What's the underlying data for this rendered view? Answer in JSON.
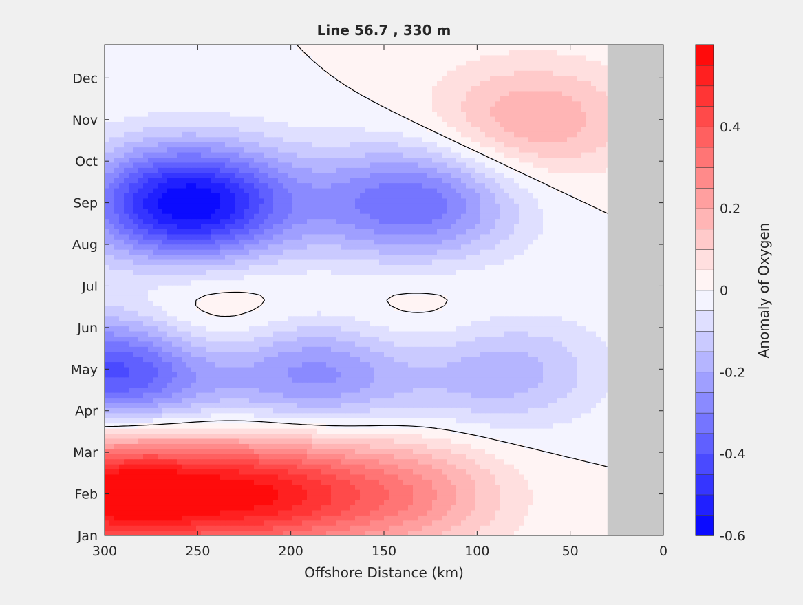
{
  "chart_data": {
    "type": "contour",
    "title": "Line 56.7 , 330 m",
    "xlabel": "Offshore Distance (km)",
    "xlim": [
      300,
      0
    ],
    "x_ticks": [
      300,
      250,
      200,
      150,
      100,
      50,
      0
    ],
    "y_ticks": [
      "Jan",
      "Feb",
      "Mar",
      "Apr",
      "May",
      "Jun",
      "Jul",
      "Aug",
      "Sep",
      "Oct",
      "Nov",
      "Dec"
    ],
    "colorbar": {
      "label": "Anomaly of Oxygen",
      "range": [
        -0.6,
        0.6
      ],
      "ticks": [
        -0.6,
        -0.4,
        -0.2,
        0,
        0.2,
        0.4
      ],
      "levels": 24
    },
    "no_data_region_km": [
      30,
      0
    ],
    "extrema": [
      {
        "x_km": 292,
        "month": "Feb",
        "value": 0.6
      },
      {
        "x_km": 214,
        "month": "Feb",
        "value": 0.45
      },
      {
        "x_km": 140,
        "month": "Feb",
        "value": 0.25
      },
      {
        "x_km": 255,
        "month": "Sep",
        "value": -0.6
      },
      {
        "x_km": 135,
        "month": "Sep",
        "value": -0.35
      },
      {
        "x_km": 292,
        "month": "May",
        "value": -0.45
      },
      {
        "x_km": 188,
        "month": "May",
        "value": -0.3
      },
      {
        "x_km": 90,
        "month": "May",
        "value": -0.2
      },
      {
        "x_km": 245,
        "month": "Jun",
        "value": 0.15
      },
      {
        "x_km": 135,
        "month": "Jun",
        "value": 0.1
      },
      {
        "x_km": 70,
        "month": "Nov",
        "value": 0.2
      }
    ]
  },
  "colors": {
    "negative": "#0000ff",
    "zero": "#ffffff",
    "positive": "#ff0000",
    "no_data": "#c8c8c8"
  }
}
